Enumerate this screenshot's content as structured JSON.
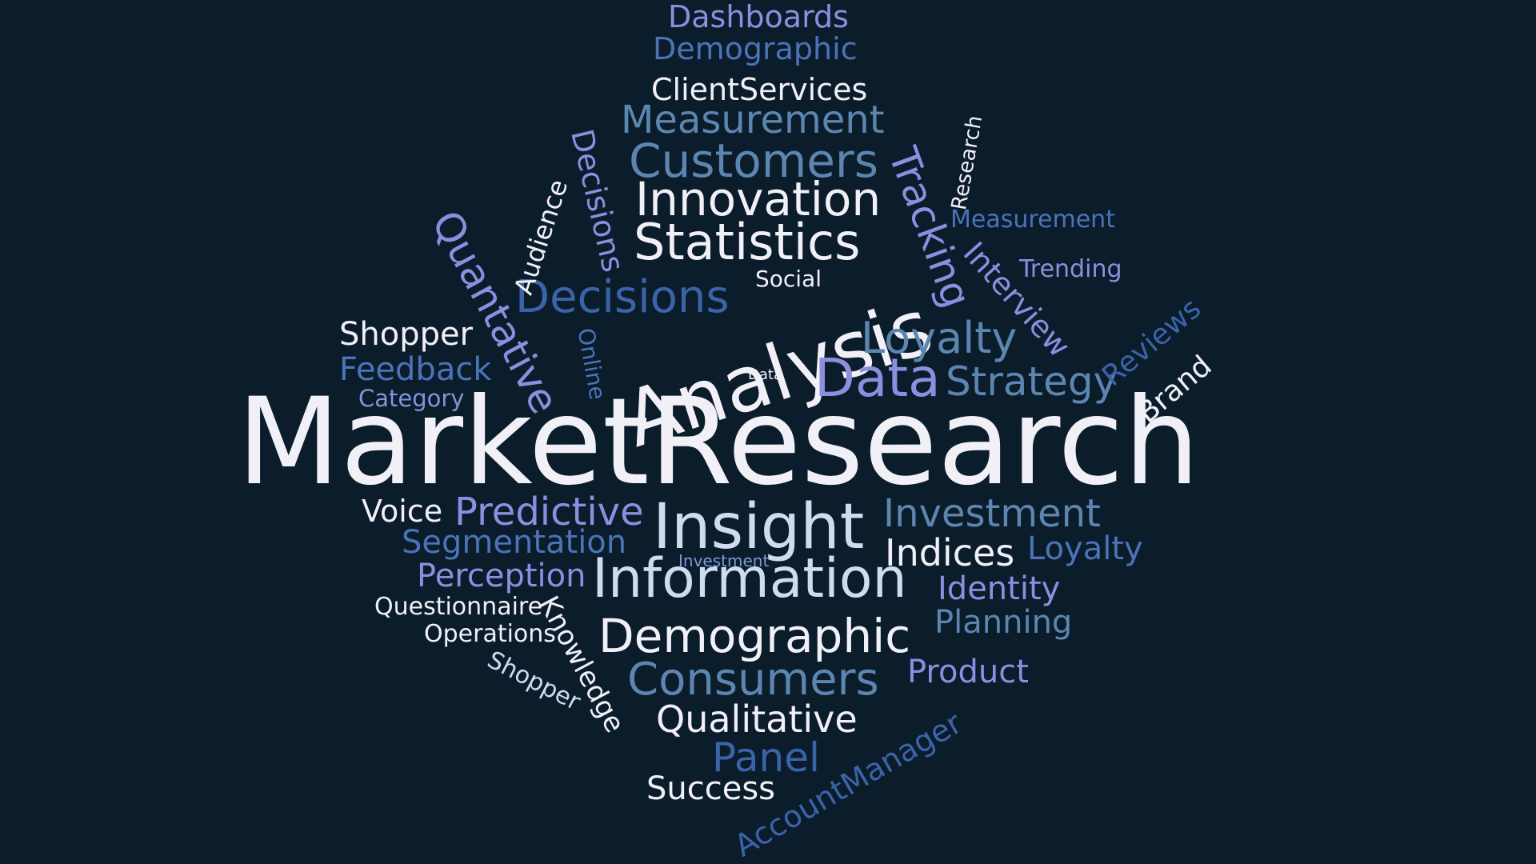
{
  "palette": {
    "background": "#0b1c2b",
    "white": "#f2f0f7",
    "pale_blue": "#cfdcf0",
    "lavender": "#8c8fe0",
    "periwinkle": "#7f95d9",
    "steel_blue": "#5c86b0",
    "mid_blue": "#4b73b8",
    "dark_blue": "#3b63a8"
  },
  "words": [
    {
      "text": "Dashboards",
      "color": "#8c8fe0"
    },
    {
      "text": "Demographic",
      "color": "#4b73b8"
    },
    {
      "text": "ClientServices",
      "color": "#f2f0f7"
    },
    {
      "text": "Measurement",
      "color": "#5c86b0"
    },
    {
      "text": "Customers",
      "color": "#5c86b0"
    },
    {
      "text": "Innovation",
      "color": "#f2f0f7"
    },
    {
      "text": "Statistics",
      "color": "#f2f0f7"
    },
    {
      "text": "Decisions",
      "color": "#3b63a8"
    },
    {
      "text": "Analysis",
      "color": "#f2f0f7"
    },
    {
      "text": "Loyalty",
      "color": "#5c86b0"
    },
    {
      "text": "Social",
      "color": "#f2f0f7"
    },
    {
      "text": "Data",
      "color": "#8c8fe0"
    },
    {
      "text": "Strategy",
      "color": "#5c86b0"
    },
    {
      "text": "Data",
      "color": "#f2f0f7"
    },
    {
      "text": "Shopper",
      "color": "#f2f0f7"
    },
    {
      "text": "Feedback",
      "color": "#4b73b8"
    },
    {
      "text": "Category",
      "color": "#7f95d9"
    },
    {
      "text": "Quantative",
      "color": "#8c8fe0"
    },
    {
      "text": "Audience",
      "color": "#f2f0f7"
    },
    {
      "text": "Decisions",
      "color": "#8c8fe0"
    },
    {
      "text": "Online",
      "color": "#4b73b8"
    },
    {
      "text": "Tracking",
      "color": "#8c8fe0"
    },
    {
      "text": "Research",
      "color": "#f2f0f7"
    },
    {
      "text": "Measurement",
      "color": "#4b73b8"
    },
    {
      "text": "Interview",
      "color": "#8c8fe0"
    },
    {
      "text": "Trending",
      "color": "#8c8fe0"
    },
    {
      "text": "Reviews",
      "color": "#3b63a8"
    },
    {
      "text": "Brand",
      "color": "#f2f0f7"
    },
    {
      "text": "MarketResearch",
      "color": "#f2f0f7"
    },
    {
      "text": "Voice",
      "color": "#f2f0f7"
    },
    {
      "text": "Predictive",
      "color": "#8c8fe0"
    },
    {
      "text": "Insight",
      "color": "#cfdcf0"
    },
    {
      "text": "Investment",
      "color": "#5c86b0"
    },
    {
      "text": "Segmentation",
      "color": "#4b73b8"
    },
    {
      "text": "Indices",
      "color": "#f2f0f7"
    },
    {
      "text": "Loyalty",
      "color": "#4b73b8"
    },
    {
      "text": "Investment",
      "color": "#7f95d9"
    },
    {
      "text": "Perception",
      "color": "#8c8fe0"
    },
    {
      "text": "Information",
      "color": "#cfdcf0"
    },
    {
      "text": "Identity",
      "color": "#8c8fe0"
    },
    {
      "text": "Questionnaire",
      "color": "#f2f0f7"
    },
    {
      "text": "Planning",
      "color": "#5c86b0"
    },
    {
      "text": "Operations",
      "color": "#f2f0f7"
    },
    {
      "text": "Demographic",
      "color": "#f2f0f7"
    },
    {
      "text": "Knowledge",
      "color": "#f2f0f7"
    },
    {
      "text": "Shopper",
      "color": "#cfdcf0"
    },
    {
      "text": "Consumers",
      "color": "#5c86b0"
    },
    {
      "text": "Product",
      "color": "#8c8fe0"
    },
    {
      "text": "Qualitative",
      "color": "#f2f0f7"
    },
    {
      "text": "Panel",
      "color": "#3b63a8"
    },
    {
      "text": "AccountManager",
      "color": "#3b63a8"
    },
    {
      "text": "Success",
      "color": "#f2f0f7"
    }
  ]
}
